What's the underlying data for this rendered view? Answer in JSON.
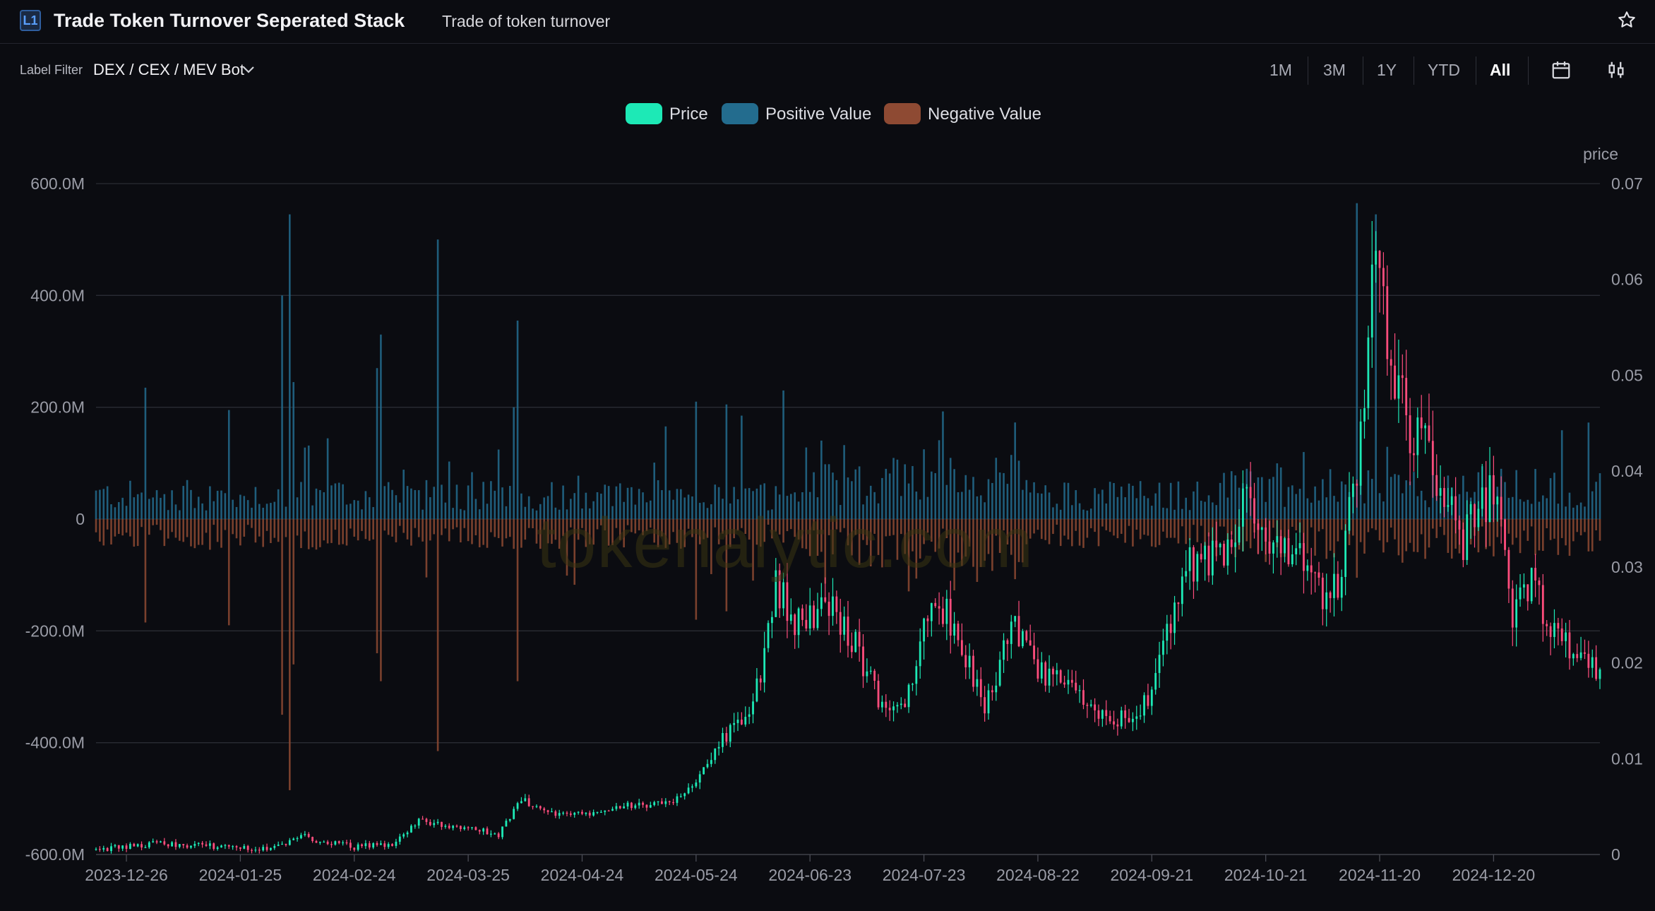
{
  "header": {
    "logo_text": "L1",
    "title": "Trade Token Turnover Seperated Stack",
    "subtitle": "Trade of token turnover"
  },
  "filter": {
    "label": "Label Filter",
    "value": "DEX / CEX / MEV Bot"
  },
  "ranges": [
    "1M",
    "3M",
    "1Y",
    "YTD",
    "All"
  ],
  "active_range": "All",
  "legend": [
    {
      "name": "Price",
      "color": "#1de9b6"
    },
    {
      "name": "Positive Value",
      "color": "#236c8e"
    },
    {
      "name": "Negative Value",
      "color": "#8e4a33"
    }
  ],
  "watermark": "tokenalytic.com",
  "chart_data": {
    "type": "bar+candlestick",
    "left_axis": {
      "ticks": [
        "600.0M",
        "400.0M",
        "200.0M",
        "0",
        "-200.0M",
        "-400.0M",
        "-600.0M"
      ],
      "range": [
        -600000000,
        600000000
      ]
    },
    "right_axis": {
      "label": "price",
      "ticks": [
        "0.07",
        "0.06",
        "0.05",
        "0.04",
        "0.03",
        "0.02",
        "0.01",
        "0"
      ],
      "range": [
        0,
        0.07
      ]
    },
    "x_ticks": [
      "2023-12-26",
      "2024-01-25",
      "2024-02-24",
      "2024-03-25",
      "2024-04-24",
      "2024-05-24",
      "2024-06-23",
      "2024-07-23",
      "2024-08-22",
      "2024-09-21",
      "2024-10-21",
      "2024-11-20",
      "2024-12-20"
    ],
    "x_range": [
      "2023-12-18",
      "2025-01-17"
    ],
    "series": [
      {
        "name": "Price",
        "kind": "candlestick",
        "points": [
          [
            "2023-12-18",
            0.0005
          ],
          [
            "2023-12-26",
            0.0008
          ],
          [
            "2024-01-05",
            0.0012
          ],
          [
            "2024-01-15",
            0.0009
          ],
          [
            "2024-01-25",
            0.0007
          ],
          [
            "2024-02-05",
            0.0008
          ],
          [
            "2024-02-10",
            0.0022
          ],
          [
            "2024-02-14",
            0.0014
          ],
          [
            "2024-02-24",
            0.0008
          ],
          [
            "2024-03-05",
            0.0011
          ],
          [
            "2024-03-12",
            0.0035
          ],
          [
            "2024-03-25",
            0.0028
          ],
          [
            "2024-04-02",
            0.002
          ],
          [
            "2024-04-08",
            0.0058
          ],
          [
            "2024-04-15",
            0.0043
          ],
          [
            "2024-04-24",
            0.0042
          ],
          [
            "2024-05-05",
            0.0052
          ],
          [
            "2024-05-18",
            0.0052
          ],
          [
            "2024-05-25",
            0.0085
          ],
          [
            "2024-06-01",
            0.0125
          ],
          [
            "2024-06-08",
            0.015
          ],
          [
            "2024-06-14",
            0.028
          ],
          [
            "2024-06-20",
            0.024
          ],
          [
            "2024-06-28",
            0.026
          ],
          [
            "2024-07-05",
            0.022
          ],
          [
            "2024-07-12",
            0.015
          ],
          [
            "2024-07-20",
            0.017
          ],
          [
            "2024-07-25",
            0.028
          ],
          [
            "2024-08-02",
            0.022
          ],
          [
            "2024-08-08",
            0.015
          ],
          [
            "2024-08-15",
            0.024
          ],
          [
            "2024-08-22",
            0.019
          ],
          [
            "2024-09-01",
            0.017
          ],
          [
            "2024-09-10",
            0.014
          ],
          [
            "2024-09-18",
            0.0145
          ],
          [
            "2024-09-23",
            0.02
          ],
          [
            "2024-10-01",
            0.03
          ],
          [
            "2024-10-10",
            0.031
          ],
          [
            "2024-10-15",
            0.037
          ],
          [
            "2024-10-22",
            0.032
          ],
          [
            "2024-11-01",
            0.03
          ],
          [
            "2024-11-06",
            0.026
          ],
          [
            "2024-11-10",
            0.029
          ],
          [
            "2024-11-16",
            0.047
          ],
          [
            "2024-11-19",
            0.064
          ],
          [
            "2024-11-22",
            0.052
          ],
          [
            "2024-11-28",
            0.045
          ],
          [
            "2024-12-05",
            0.04
          ],
          [
            "2024-12-12",
            0.033
          ],
          [
            "2024-12-20",
            0.038
          ],
          [
            "2024-12-25",
            0.025
          ],
          [
            "2024-12-30",
            0.028
          ],
          [
            "2025-01-05",
            0.023
          ],
          [
            "2025-01-12",
            0.02
          ],
          [
            "2025-01-17",
            0.0195
          ]
        ]
      },
      {
        "name": "Positive Value",
        "kind": "bar",
        "spikes": [
          [
            "2023-12-31",
            235
          ],
          [
            "2024-01-22",
            195
          ],
          [
            "2024-02-05",
            400
          ],
          [
            "2024-02-07",
            545
          ],
          [
            "2024-02-08",
            245
          ],
          [
            "2024-03-01",
            270
          ],
          [
            "2024-03-02",
            330
          ],
          [
            "2024-03-17",
            500
          ],
          [
            "2024-04-07",
            355
          ],
          [
            "2024-04-06",
            200
          ],
          [
            "2024-05-24",
            210
          ],
          [
            "2024-06-01",
            205
          ],
          [
            "2024-06-05",
            185
          ],
          [
            "2024-06-16",
            230
          ],
          [
            "2024-07-25",
            85
          ],
          [
            "2024-10-16",
            90
          ],
          [
            "2024-11-14",
            565
          ],
          [
            "2024-11-19",
            545
          ]
        ]
      },
      {
        "name": "Negative Value",
        "kind": "bar",
        "spikes": [
          [
            "2023-12-31",
            -185
          ],
          [
            "2024-01-22",
            -190
          ],
          [
            "2024-02-05",
            -350
          ],
          [
            "2024-02-07",
            -485
          ],
          [
            "2024-02-08",
            -260
          ],
          [
            "2024-03-01",
            -240
          ],
          [
            "2024-03-02",
            -290
          ],
          [
            "2024-03-17",
            -415
          ],
          [
            "2024-04-07",
            -290
          ],
          [
            "2024-05-24",
            -180
          ],
          [
            "2024-06-01",
            -165
          ],
          [
            "2024-11-14",
            -105
          ]
        ]
      }
    ]
  }
}
